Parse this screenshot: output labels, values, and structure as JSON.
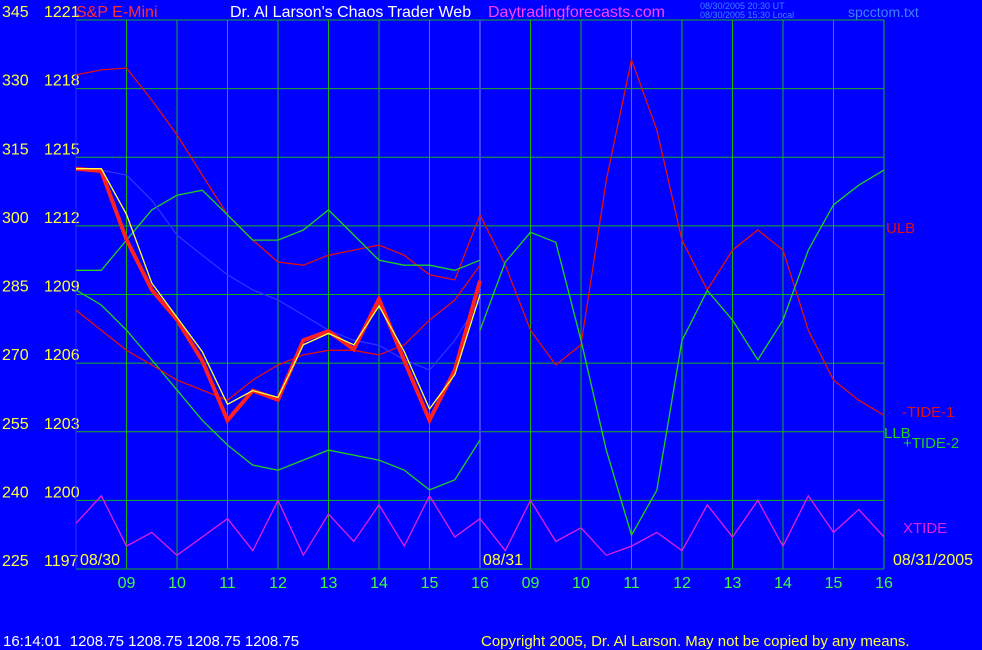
{
  "chart_data": {
    "type": "line",
    "title": "S&P E-Mini",
    "subtitle": "Dr. Al Larson's Chaos Trader Web",
    "site": "Daytradingforecasts.com",
    "timestamps": [
      "08/30/2005 20:30 UT",
      "08/30/2005 15:30 Local"
    ],
    "file": "spcctom.txt",
    "date_labels": [
      "08/30",
      "08/31",
      "08/31/2005"
    ],
    "status": "16:14:01  1208.75 1208.75 1208.75 1208.75",
    "copyright": "Copyright 2005, Dr. Al Larson. May not be copied by any means.",
    "x": [
      8,
      8.5,
      9,
      9.5,
      10,
      10.5,
      11,
      11.5,
      12,
      12.5,
      13,
      13.5,
      14,
      14.5,
      15,
      15.5,
      16,
      16.5,
      17,
      17.5,
      18,
      18.5,
      19,
      19.5,
      20,
      20.5,
      21,
      21.5,
      22,
      22.5,
      23,
      23.5,
      24
    ],
    "xlim": [
      8,
      24
    ],
    "xticks": [
      {
        "value": 9,
        "label": "09"
      },
      10,
      11,
      12,
      13,
      14,
      15,
      16,
      {
        "value": 17,
        "label": "09"
      },
      {
        "value": 18,
        "label": "10"
      },
      {
        "value": 19,
        "label": "11"
      },
      {
        "value": 20,
        "label": "12"
      },
      {
        "value": 21,
        "label": "13"
      },
      {
        "value": 22,
        "label": "14"
      },
      {
        "value": 23,
        "label": "15"
      },
      {
        "value": 24,
        "label": "16"
      }
    ],
    "ylim": [
      225,
      345
    ],
    "yticks": [
      225,
      240,
      255,
      270,
      285,
      300,
      315,
      330,
      345
    ],
    "y2lim": [
      1197,
      1221
    ],
    "y2ticks": [
      1197,
      1200,
      1203,
      1206,
      1209,
      1212,
      1215,
      1218,
      1221
    ],
    "grid": true,
    "series": [
      {
        "name": "ULB",
        "color": "#e01010",
        "values": [
          333.0,
          334.1,
          334.5,
          327.5,
          319.9,
          311.1,
          302.4,
          296.9,
          292.1,
          291.4,
          293.6,
          294.7,
          295.8,
          293.6,
          289.3,
          288.2,
          302.4,
          null,
          null,
          null,
          null,
          null,
          null,
          null,
          null,
          null,
          null,
          null,
          null,
          null,
          null,
          null,
          null
        ]
      },
      {
        "name": "-TIDE-1",
        "color": "#e01010",
        "values": [
          null,
          null,
          null,
          null,
          null,
          null,
          null,
          null,
          null,
          null,
          null,
          null,
          null,
          null,
          null,
          null,
          302.4,
          291.4,
          277.2,
          269.6,
          274.0,
          310.0,
          336.3,
          321.0,
          296.9,
          286.0,
          294.7,
          299.1,
          294.7,
          277.2,
          266.3,
          261.9,
          258.6
        ]
      },
      {
        "name": "LLB",
        "color": "#20d020",
        "values": [
          286.0,
          282.7,
          277.2,
          270.7,
          264.1,
          257.5,
          252.1,
          247.7,
          246.6,
          248.8,
          251.0,
          249.9,
          248.8,
          246.6,
          242.3,
          244.5,
          253.2,
          null,
          null,
          null,
          null,
          null,
          null,
          null,
          null,
          null,
          null,
          null,
          null,
          null,
          null,
          null,
          null
        ]
      },
      {
        "name": "+TIDE-2",
        "color": "#20d020",
        "values": [
          null,
          null,
          null,
          null,
          null,
          null,
          null,
          null,
          null,
          null,
          null,
          null,
          null,
          null,
          null,
          null,
          277.2,
          292.1,
          298.6,
          296.4,
          275.0,
          251.0,
          232.4,
          242.2,
          275.0,
          285.9,
          279.4,
          270.7,
          279.4,
          294.7,
          304.6,
          308.9,
          312.2
        ]
      },
      {
        "name": "XTIDE",
        "color": "#e020e0",
        "values": [
          235,
          241,
          230,
          233,
          228,
          232,
          236,
          229,
          240,
          228,
          237,
          231,
          239,
          230,
          241,
          232,
          236,
          229,
          240,
          231,
          234,
          228,
          230,
          233,
          229,
          239,
          232,
          240,
          230,
          241,
          233,
          238,
          232
        ]
      },
      {
        "color": "#20d020",
        "values": [
          290.3,
          290.3,
          296.9,
          303.5,
          306.7,
          307.8,
          302.4,
          296.9,
          296.9,
          299.1,
          303.5,
          298.0,
          292.5,
          291.4,
          291.4,
          290.3,
          292.5,
          null,
          null,
          null,
          null,
          null,
          null,
          null,
          null,
          null,
          null,
          null,
          null,
          null,
          null,
          null,
          null
        ]
      },
      {
        "color": "#e01010",
        "values": [
          281.6,
          277.2,
          272.8,
          269.6,
          266.3,
          264.1,
          261.9,
          266.3,
          269.6,
          271.8,
          272.8,
          272.8,
          271.8,
          274.0,
          279.4,
          283.8,
          291.4,
          null,
          null,
          null,
          null,
          null,
          null,
          null,
          null,
          null,
          null,
          null,
          null,
          null,
          null,
          null,
          null
        ]
      },
      {
        "color": "#3030ff",
        "values": [
          312.2,
          312.2,
          311.1,
          305.6,
          298.0,
          293.6,
          289.3,
          286.0,
          283.8,
          280.5,
          277.2,
          275.0,
          273.9,
          270.7,
          268.5,
          275.0,
          283.8,
          null,
          null,
          null,
          null,
          null,
          null,
          null,
          null,
          null,
          null,
          null,
          null,
          null,
          null,
          null,
          null
        ]
      },
      {
        "color": "#ff2020",
        "axis": "y2",
        "values": [
          1214.5,
          1214.4,
          1211.4,
          1209.2,
          1207.9,
          1206.1,
          1203.5,
          1204.8,
          1204.4,
          1207.0,
          1207.4,
          1206.6,
          1208.8,
          1206.1,
          1203.5,
          1205.7,
          1209.6,
          null,
          null,
          null,
          null,
          null,
          null,
          null,
          null,
          null,
          null,
          null,
          null,
          null,
          null,
          null,
          null
        ]
      },
      {
        "color": "#ffff40",
        "axis": "y2",
        "values": [
          1214.5,
          1214.5,
          1212.5,
          1209.5,
          1208.0,
          1206.5,
          1204.2,
          1204.8,
          1204.5,
          1206.8,
          1207.3,
          1206.8,
          1208.5,
          1206.5,
          1204.0,
          1205.5,
          1209.0,
          null,
          null,
          null,
          null,
          null,
          null,
          null,
          null,
          null,
          null,
          null,
          null,
          null,
          null,
          null,
          null
        ]
      }
    ]
  }
}
